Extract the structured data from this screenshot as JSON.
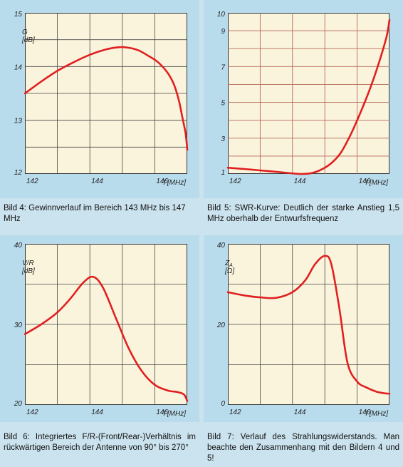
{
  "chart_data": [
    {
      "id": "bild4",
      "type": "line",
      "ylabel_lines": [
        "G",
        "[dB]"
      ],
      "xlabel": "f [MHz]",
      "xlim": [
        142,
        147
      ],
      "ylim": [
        12,
        15
      ],
      "xticks": [
        142,
        144,
        146
      ],
      "yticks": [
        12,
        13,
        14,
        15
      ],
      "y_gridlines": [
        12.5,
        13,
        13.5,
        14,
        14.5
      ],
      "caption": "Bild 4: Gewinnverlauf im Bereich 143 MHz bis 147 MHz",
      "series": [
        {
          "x": [
            142,
            142.5,
            143,
            143.5,
            144,
            144.5,
            144.9,
            145.2,
            145.5,
            145.8,
            146.1,
            146.4,
            146.6,
            146.75,
            146.85,
            146.95,
            147
          ],
          "y": [
            13.5,
            13.72,
            13.92,
            14.08,
            14.22,
            14.32,
            14.36,
            14.35,
            14.3,
            14.2,
            14.08,
            13.88,
            13.65,
            13.35,
            13.05,
            12.75,
            12.45
          ],
          "color": "#e02020"
        }
      ]
    },
    {
      "id": "bild5",
      "type": "line",
      "ylabel_lines": [],
      "xlabel": "f [MHz]",
      "xlim": [
        142,
        147
      ],
      "ylim": [
        1,
        10
      ],
      "xticks": [
        142,
        144,
        146
      ],
      "yticks": [
        1,
        3,
        5,
        7,
        9,
        10
      ],
      "y_gridlines": [
        2,
        3,
        4,
        5,
        6,
        7,
        8,
        9
      ],
      "caption": "Bild 5: SWR-Kurve: Deutlich der starke Anstieg 1,5 MHz oberhalb der Entwurfsfrequenz",
      "series": [
        {
          "x": [
            142,
            142.5,
            143,
            143.5,
            144,
            144.3,
            144.6,
            144.9,
            145.2,
            145.5,
            145.8,
            146,
            146.3,
            146.6,
            146.9,
            147
          ],
          "y": [
            1.35,
            1.28,
            1.2,
            1.12,
            1.03,
            1.0,
            1.05,
            1.25,
            1.6,
            2.2,
            3.2,
            4.0,
            5.3,
            6.8,
            8.6,
            9.6
          ],
          "color": "#e02020"
        }
      ]
    },
    {
      "id": "bild6",
      "type": "line",
      "ylabel_lines": [
        "V/R",
        "[dB]"
      ],
      "xlabel": "f [MHz]",
      "xlim": [
        142,
        147
      ],
      "ylim": [
        20,
        40
      ],
      "xticks": [
        142,
        144,
        146
      ],
      "yticks": [
        20,
        30,
        40
      ],
      "y_gridlines": [
        25,
        30,
        35
      ],
      "caption": "Bild 6: Integriertes F/R-(Front/Rear-)Verhältnis im rückwärtigen Bereich der Antenne von 90° bis 270°",
      "series": [
        {
          "x": [
            142,
            142.5,
            143,
            143.4,
            143.8,
            144.1,
            144.4,
            144.8,
            145.2,
            145.6,
            146,
            146.4,
            146.7,
            146.9,
            147
          ],
          "y": [
            28.8,
            30.0,
            31.5,
            33.2,
            35.2,
            35.9,
            34.6,
            30.8,
            27.0,
            24.2,
            22.5,
            21.8,
            21.6,
            21.3,
            20.5
          ],
          "color": "#e02020"
        }
      ]
    },
    {
      "id": "bild7",
      "type": "line",
      "ylabel_lines": [
        "Z",
        "[Ω]"
      ],
      "ylabel_sub": "A",
      "xlabel": "f [MHz]",
      "xlim": [
        142,
        147
      ],
      "ylim": [
        0,
        40
      ],
      "xticks": [
        142,
        144,
        146
      ],
      "yticks": [
        0,
        20,
        40
      ],
      "y_gridlines": [
        10,
        20,
        30
      ],
      "caption": "Bild 7: Verlauf des Strahlungswiderstands. Man beachte den Zusammenhang mit den Bildern 4 und 5!",
      "series": [
        {
          "x": [
            142,
            142.5,
            143,
            143.5,
            144,
            144.4,
            144.7,
            145,
            145.2,
            145.45,
            145.7,
            146,
            146.3,
            146.6,
            146.85,
            147
          ],
          "y": [
            28.0,
            27.2,
            26.7,
            26.6,
            28.0,
            31.0,
            35.0,
            37.0,
            35.0,
            24.0,
            10.5,
            5.8,
            4.3,
            3.3,
            2.9,
            2.8
          ],
          "color": "#e02020"
        }
      ]
    }
  ]
}
